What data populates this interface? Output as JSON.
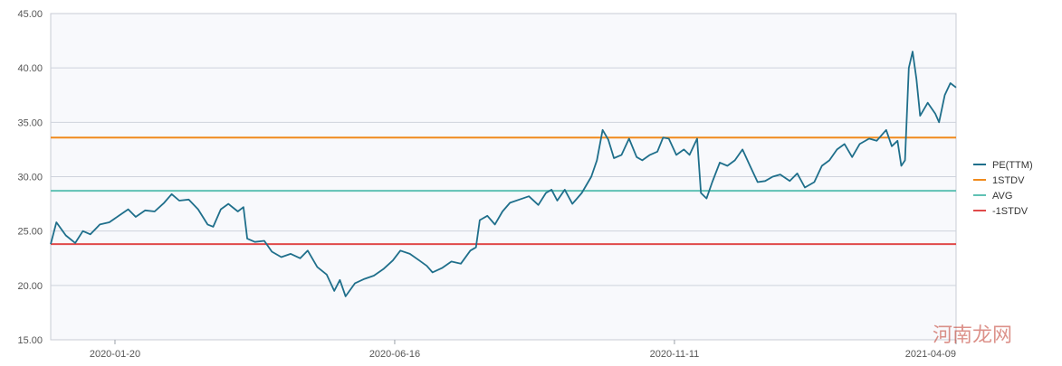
{
  "chart_data": {
    "type": "line",
    "title": "",
    "xlabel": "",
    "ylabel": "",
    "x_start": "2019-12-17",
    "x_end": "2021-04-09",
    "x_ticks": [
      "2020-01-20",
      "2020-06-16",
      "2020-11-11",
      "2021-04-09"
    ],
    "ylim": [
      15,
      45
    ],
    "y_ticks": [
      "15.00",
      "20.00",
      "25.00",
      "30.00",
      "35.00",
      "40.00",
      "45.00"
    ],
    "grid": "horizontal",
    "legend_position": "right",
    "series": [
      {
        "name": "PE(TTM)",
        "color": "#1f6f8b",
        "values": [
          [
            "2019-12-17",
            23.8
          ],
          [
            "2019-12-20",
            25.8
          ],
          [
            "2019-12-25",
            24.6
          ],
          [
            "2019-12-30",
            23.9
          ],
          [
            "2020-01-03",
            25.0
          ],
          [
            "2020-01-07",
            24.7
          ],
          [
            "2020-01-12",
            25.6
          ],
          [
            "2020-01-17",
            25.8
          ],
          [
            "2020-01-22",
            26.4
          ],
          [
            "2020-01-27",
            27.0
          ],
          [
            "2020-01-31",
            26.3
          ],
          [
            "2020-02-05",
            26.9
          ],
          [
            "2020-02-10",
            26.8
          ],
          [
            "2020-02-15",
            27.6
          ],
          [
            "2020-02-19",
            28.4
          ],
          [
            "2020-02-23",
            27.8
          ],
          [
            "2020-02-28",
            27.9
          ],
          [
            "2020-03-04",
            27.0
          ],
          [
            "2020-03-09",
            25.6
          ],
          [
            "2020-03-12",
            25.4
          ],
          [
            "2020-03-16",
            27.0
          ],
          [
            "2020-03-20",
            27.5
          ],
          [
            "2020-03-25",
            26.8
          ],
          [
            "2020-03-28",
            27.2
          ],
          [
            "2020-03-30",
            24.3
          ],
          [
            "2020-04-03",
            24.0
          ],
          [
            "2020-04-08",
            24.1
          ],
          [
            "2020-04-12",
            23.1
          ],
          [
            "2020-04-17",
            22.6
          ],
          [
            "2020-04-22",
            22.9
          ],
          [
            "2020-04-27",
            22.5
          ],
          [
            "2020-05-01",
            23.2
          ],
          [
            "2020-05-06",
            21.7
          ],
          [
            "2020-05-11",
            21.0
          ],
          [
            "2020-05-15",
            19.5
          ],
          [
            "2020-05-18",
            20.5
          ],
          [
            "2020-05-21",
            19.0
          ],
          [
            "2020-05-26",
            20.2
          ],
          [
            "2020-05-31",
            20.6
          ],
          [
            "2020-06-05",
            20.9
          ],
          [
            "2020-06-10",
            21.5
          ],
          [
            "2020-06-15",
            22.3
          ],
          [
            "2020-06-19",
            23.2
          ],
          [
            "2020-06-24",
            22.9
          ],
          [
            "2020-06-29",
            22.3
          ],
          [
            "2020-07-03",
            21.8
          ],
          [
            "2020-07-06",
            21.2
          ],
          [
            "2020-07-11",
            21.6
          ],
          [
            "2020-07-16",
            22.2
          ],
          [
            "2020-07-21",
            22.0
          ],
          [
            "2020-07-26",
            23.2
          ],
          [
            "2020-07-29",
            23.5
          ],
          [
            "2020-07-31",
            26.0
          ],
          [
            "2020-08-04",
            26.4
          ],
          [
            "2020-08-08",
            25.6
          ],
          [
            "2020-08-12",
            26.8
          ],
          [
            "2020-08-16",
            27.6
          ],
          [
            "2020-08-21",
            27.9
          ],
          [
            "2020-08-26",
            28.2
          ],
          [
            "2020-08-31",
            27.4
          ],
          [
            "2020-09-04",
            28.5
          ],
          [
            "2020-09-07",
            28.8
          ],
          [
            "2020-09-10",
            27.8
          ],
          [
            "2020-09-14",
            28.8
          ],
          [
            "2020-09-18",
            27.5
          ],
          [
            "2020-09-23",
            28.5
          ],
          [
            "2020-09-28",
            30.0
          ],
          [
            "2020-10-01",
            31.5
          ],
          [
            "2020-10-04",
            34.3
          ],
          [
            "2020-10-07",
            33.4
          ],
          [
            "2020-10-10",
            31.7
          ],
          [
            "2020-10-14",
            32.0
          ],
          [
            "2020-10-18",
            33.5
          ],
          [
            "2020-10-22",
            31.8
          ],
          [
            "2020-10-25",
            31.5
          ],
          [
            "2020-10-29",
            32.0
          ],
          [
            "2020-11-02",
            32.3
          ],
          [
            "2020-11-05",
            33.6
          ],
          [
            "2020-11-08",
            33.5
          ],
          [
            "2020-11-12",
            32.0
          ],
          [
            "2020-11-16",
            32.5
          ],
          [
            "2020-11-19",
            32.0
          ],
          [
            "2020-11-23",
            33.5
          ],
          [
            "2020-11-25",
            28.5
          ],
          [
            "2020-11-28",
            28.0
          ],
          [
            "2020-12-01",
            29.5
          ],
          [
            "2020-12-05",
            31.3
          ],
          [
            "2020-12-09",
            31.0
          ],
          [
            "2020-12-13",
            31.5
          ],
          [
            "2020-12-17",
            32.5
          ],
          [
            "2020-12-21",
            31.0
          ],
          [
            "2020-12-25",
            29.5
          ],
          [
            "2020-12-29",
            29.6
          ],
          [
            "2021-01-02",
            30.0
          ],
          [
            "2021-01-06",
            30.2
          ],
          [
            "2021-01-11",
            29.6
          ],
          [
            "2021-01-15",
            30.3
          ],
          [
            "2021-01-19",
            29.0
          ],
          [
            "2021-01-24",
            29.5
          ],
          [
            "2021-01-28",
            31.0
          ],
          [
            "2021-02-01",
            31.5
          ],
          [
            "2021-02-05",
            32.5
          ],
          [
            "2021-02-09",
            33.0
          ],
          [
            "2021-02-13",
            31.8
          ],
          [
            "2021-02-17",
            33.0
          ],
          [
            "2021-02-22",
            33.5
          ],
          [
            "2021-02-26",
            33.3
          ],
          [
            "2021-03-03",
            34.3
          ],
          [
            "2021-03-06",
            32.8
          ],
          [
            "2021-03-09",
            33.3
          ],
          [
            "2021-03-11",
            31.0
          ],
          [
            "2021-03-13",
            31.5
          ],
          [
            "2021-03-15",
            40.0
          ],
          [
            "2021-03-17",
            41.5
          ],
          [
            "2021-03-19",
            39.0
          ],
          [
            "2021-03-21",
            35.6
          ],
          [
            "2021-03-25",
            36.8
          ],
          [
            "2021-03-29",
            35.8
          ],
          [
            "2021-03-31",
            35.0
          ],
          [
            "2021-04-03",
            37.5
          ],
          [
            "2021-04-06",
            38.6
          ],
          [
            "2021-04-09",
            38.2
          ]
        ]
      },
      {
        "name": "1STDV",
        "color": "#f08a1c",
        "values": [
          [
            "2019-12-17",
            33.6
          ],
          [
            "2021-04-09",
            33.6
          ]
        ]
      },
      {
        "name": "AVG",
        "color": "#5fc1b4",
        "values": [
          [
            "2019-12-17",
            28.7
          ],
          [
            "2021-04-09",
            28.7
          ]
        ]
      },
      {
        "name": "-1STDV",
        "color": "#e04a4a",
        "values": [
          [
            "2019-12-17",
            23.8
          ],
          [
            "2021-04-09",
            23.8
          ]
        ]
      }
    ]
  },
  "watermark": "河南龙网"
}
